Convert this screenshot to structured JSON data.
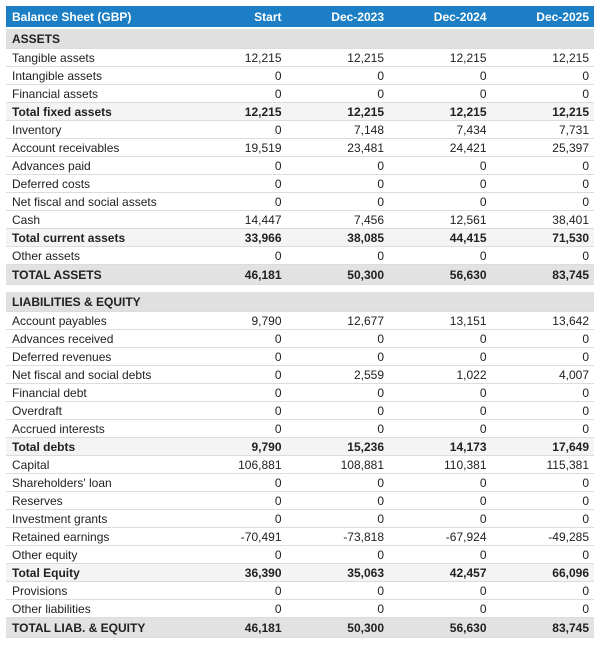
{
  "colors": {
    "header_bg": "#1c7fc5",
    "header_text": "#ffffff",
    "section_bg": "#e0e0e0",
    "subtotal_bg": "#f4f4f4",
    "total_bg": "#e2e2e2",
    "row_border": "#dcdcdc",
    "strong_border": "#3d3d3d",
    "text": "#212121"
  },
  "table": {
    "title": "Balance Sheet (GBP)",
    "columns": [
      "Start",
      "Dec-2023",
      "Dec-2024",
      "Dec-2025"
    ],
    "sections": [
      {
        "header": "ASSETS",
        "rows": [
          {
            "label": "Tangible assets",
            "values": [
              "12,215",
              "12,215",
              "12,215",
              "12,215"
            ],
            "style": "normal"
          },
          {
            "label": "Intangible assets",
            "values": [
              "0",
              "0",
              "0",
              "0"
            ],
            "style": "normal"
          },
          {
            "label": "Financial assets",
            "values": [
              "0",
              "0",
              "0",
              "0"
            ],
            "style": "normal"
          },
          {
            "label": "Total fixed assets",
            "values": [
              "12,215",
              "12,215",
              "12,215",
              "12,215"
            ],
            "style": "subtotal"
          },
          {
            "label": "Inventory",
            "values": [
              "0",
              "7,148",
              "7,434",
              "7,731"
            ],
            "style": "normal"
          },
          {
            "label": "Account receivables",
            "values": [
              "19,519",
              "23,481",
              "24,421",
              "25,397"
            ],
            "style": "normal"
          },
          {
            "label": "Advances paid",
            "values": [
              "0",
              "0",
              "0",
              "0"
            ],
            "style": "normal"
          },
          {
            "label": "Deferred costs",
            "values": [
              "0",
              "0",
              "0",
              "0"
            ],
            "style": "normal"
          },
          {
            "label": "Net fiscal and social assets",
            "values": [
              "0",
              "0",
              "0",
              "0"
            ],
            "style": "normal"
          },
          {
            "label": "Cash",
            "values": [
              "14,447",
              "7,456",
              "12,561",
              "38,401"
            ],
            "style": "normal"
          },
          {
            "label": "Total current assets",
            "values": [
              "33,966",
              "38,085",
              "44,415",
              "71,530"
            ],
            "style": "subtotal"
          },
          {
            "label": "Other assets",
            "values": [
              "0",
              "0",
              "0",
              "0"
            ],
            "style": "normal"
          },
          {
            "label": "TOTAL ASSETS",
            "values": [
              "46,181",
              "50,300",
              "56,630",
              "83,745"
            ],
            "style": "grand_total"
          }
        ]
      },
      {
        "header": "LIABILITIES & EQUITY",
        "rows": [
          {
            "label": "Account payables",
            "values": [
              "9,790",
              "12,677",
              "13,151",
              "13,642"
            ],
            "style": "normal"
          },
          {
            "label": "Advances received",
            "values": [
              "0",
              "0",
              "0",
              "0"
            ],
            "style": "normal"
          },
          {
            "label": "Deferred revenues",
            "values": [
              "0",
              "0",
              "0",
              "0"
            ],
            "style": "normal"
          },
          {
            "label": "Net fiscal and social debts",
            "values": [
              "0",
              "2,559",
              "1,022",
              "4,007"
            ],
            "style": "normal"
          },
          {
            "label": "Financial debt",
            "values": [
              "0",
              "0",
              "0",
              "0"
            ],
            "style": "normal"
          },
          {
            "label": "Overdraft",
            "values": [
              "0",
              "0",
              "0",
              "0"
            ],
            "style": "normal"
          },
          {
            "label": "Accrued interests",
            "values": [
              "0",
              "0",
              "0",
              "0"
            ],
            "style": "normal"
          },
          {
            "label": "Total debts",
            "values": [
              "9,790",
              "15,236",
              "14,173",
              "17,649"
            ],
            "style": "subtotal"
          },
          {
            "label": "Capital",
            "values": [
              "106,881",
              "108,881",
              "110,381",
              "115,381"
            ],
            "style": "normal"
          },
          {
            "label": "Shareholders' loan",
            "values": [
              "0",
              "0",
              "0",
              "0"
            ],
            "style": "normal"
          },
          {
            "label": "Reserves",
            "values": [
              "0",
              "0",
              "0",
              "0"
            ],
            "style": "normal"
          },
          {
            "label": "Investment grants",
            "values": [
              "0",
              "0",
              "0",
              "0"
            ],
            "style": "normal"
          },
          {
            "label": "Retained earnings",
            "values": [
              "-70,491",
              "-73,818",
              "-67,924",
              "-49,285"
            ],
            "style": "normal"
          },
          {
            "label": "Other equity",
            "values": [
              "0",
              "0",
              "0",
              "0"
            ],
            "style": "normal"
          },
          {
            "label": "Total Equity",
            "values": [
              "36,390",
              "35,063",
              "42,457",
              "66,096"
            ],
            "style": "subtotal"
          },
          {
            "label": "Provisions",
            "values": [
              "0",
              "0",
              "0",
              "0"
            ],
            "style": "normal"
          },
          {
            "label": "Other liabilities",
            "values": [
              "0",
              "0",
              "0",
              "0"
            ],
            "style": "normal"
          },
          {
            "label": "TOTAL LIAB. & EQUITY",
            "values": [
              "46,181",
              "50,300",
              "56,630",
              "83,745"
            ],
            "style": "grand_total"
          }
        ]
      }
    ]
  }
}
